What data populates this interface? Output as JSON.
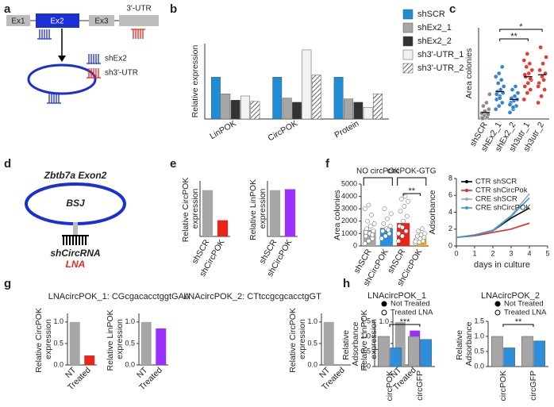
{
  "panel_labels": [
    "a",
    "b",
    "c",
    "d",
    "e",
    "f",
    "g",
    "h"
  ],
  "diagram_a": {
    "exons": [
      "Ex1",
      "Ex2",
      "Ex3",
      "3'-UTR"
    ],
    "legend": [
      "shEx2",
      "sh3'-UTR"
    ]
  },
  "diagram_d": {
    "title": "Zbtb7a Exon2",
    "junction": "BSJ",
    "probe": "shCircRNA",
    "probe_alt": "LNA"
  },
  "g_titles": [
    "LNAcircPOK_1: CGcgacacctggtGAA",
    "LNAcircPOK_2: CTtccgcgcacctgGT"
  ],
  "chart_data": [
    {
      "type": "bar",
      "ylabel": "Relative expression",
      "categories": [
        "LinPOK",
        "CircPOK",
        "Protein"
      ],
      "ylim": [
        0,
        1.8
      ],
      "legend": "right",
      "series": [
        {
          "name": "shSCR",
          "color": "#1f8dd6",
          "values": [
            1,
            1,
            1
          ]
        },
        {
          "name": "shEx2_1",
          "color": "#a6a6a6",
          "values": [
            0.6,
            0.5,
            0.48
          ]
        },
        {
          "name": "shEx2_2",
          "color": "#333333",
          "values": [
            0.45,
            0.4,
            0.4
          ]
        },
        {
          "name": "sh3'-UTR_1",
          "color": "#f2f2f2",
          "values": [
            0.55,
            1.65,
            0.28
          ]
        },
        {
          "name": "sh3'-UTR_2",
          "color": "#bbbbbb",
          "pattern": "hatch",
          "values": [
            0.42,
            1.05,
            0.6
          ]
        }
      ]
    },
    {
      "type": "strip",
      "ylabel": "Area colonies",
      "categories": [
        "shSCR",
        "shEx2_1",
        "shEx2_2",
        "sh3utr_1",
        "sh3utr_2"
      ],
      "ylim": [
        0,
        1400
      ],
      "colors": [
        "#808080",
        "#1f77d4",
        "#1f77d4",
        "#e8251b",
        "#e8251b"
      ],
      "mean_style": "line",
      "points": [
        [
          20,
          40,
          60,
          80,
          100,
          150,
          200,
          250,
          380,
          50,
          30,
          90,
          120,
          70,
          10
        ],
        [
          150,
          200,
          250,
          300,
          350,
          400,
          420,
          450,
          500,
          550,
          600,
          650,
          700,
          800,
          380,
          320
        ],
        [
          100,
          150,
          200,
          250,
          280,
          300,
          320,
          350,
          400,
          450,
          500,
          220,
          180
        ],
        [
          300,
          400,
          450,
          500,
          550,
          600,
          650,
          700,
          750,
          800,
          850,
          900,
          1000,
          620,
          680
        ],
        [
          250,
          350,
          450,
          550,
          650,
          700,
          750,
          850,
          950,
          1100,
          600,
          500
        ]
      ],
      "means": [
        100,
        420,
        300,
        650,
        680
      ],
      "annotations": [
        {
          "text": "*",
          "from": 1,
          "to": 4
        },
        {
          "text": "**",
          "from": 1,
          "to": 3
        }
      ]
    },
    {
      "type": "bar",
      "ylabel": "Relative CircPOK expression",
      "categories": [
        "shSCR",
        "shCircPOK"
      ],
      "ylim": [
        0,
        1.2
      ],
      "values": [
        1,
        0.35
      ],
      "colors": [
        "#a6a6a6",
        "#e8251b"
      ]
    },
    {
      "type": "bar",
      "ylabel": "Relative LinPOK expression",
      "categories": [
        "shSCR",
        "shCircPOK"
      ],
      "ylim": [
        0,
        1.2
      ],
      "values": [
        1,
        1.02
      ],
      "colors": [
        "#a6a6a6",
        "#9b30ff"
      ]
    },
    {
      "type": "strip",
      "ylabel": "Area colonies",
      "categories": [
        "shSCR",
        "shCircPOK",
        "shSCR",
        "shCircPOK"
      ],
      "ylim": [
        0,
        5000
      ],
      "yticks": [
        0,
        1000,
        2000,
        3000,
        4000,
        5000
      ],
      "colors": [
        "#a6a6a6",
        "#2b8fdc",
        "#e8251b",
        "#f5a623"
      ],
      "mean_style": "bar",
      "point_fill": "#ffffff",
      "points": [
        [
          200,
          400,
          600,
          800,
          1000,
          1200,
          1400,
          1600,
          1800,
          2000,
          2500,
          3000,
          3300,
          900,
          1100
        ],
        [
          600,
          800,
          1000,
          1200,
          1400,
          1600,
          1800,
          2200,
          2600,
          3000,
          1300
        ],
        [
          400,
          800,
          1200,
          1600,
          2000,
          2400,
          2800,
          3200,
          3600,
          3800,
          4000,
          1000,
          1500
        ],
        [
          200,
          300,
          400,
          500,
          600,
          700,
          800,
          900,
          1000,
          1200,
          1400,
          350
        ]
      ],
      "means": [
        1300,
        1450,
        1850,
        600
      ],
      "group_labels": [
        {
          "text": "NO circPOK",
          "from": 0,
          "to": 1
        },
        {
          "text": "circPOK-GTG",
          "from": 2,
          "to": 3
        }
      ],
      "annotations": [
        {
          "text": "**",
          "from": 2,
          "to": 3
        }
      ]
    },
    {
      "type": "line",
      "ylabel": "Adsorbance",
      "xlabel": "days in culture",
      "x": [
        0,
        1,
        2,
        3,
        4
      ],
      "xlim": [
        0,
        5
      ],
      "xticks": [
        0,
        1,
        2,
        3,
        4,
        5
      ],
      "ylim": [
        0,
        8
      ],
      "yticks": [
        0,
        2,
        4,
        6,
        8
      ],
      "legend": "upper left",
      "series": [
        {
          "name": "CTR shSCR",
          "color": "#000000",
          "values": [
            1,
            1.3,
            1.8,
            3.3,
            4.5
          ]
        },
        {
          "name": "CTR shCircPok",
          "color": "#e8251b",
          "values": [
            1,
            1.2,
            1.6,
            2,
            2.7
          ]
        },
        {
          "name": "CRE shSCR",
          "color": "#a6a6a6",
          "values": [
            1,
            1.3,
            1.9,
            3.6,
            6.2
          ]
        },
        {
          "name": "CRE shCircPOK",
          "color": "#2b9de0",
          "values": [
            1,
            1.3,
            1.8,
            3.5,
            5.7
          ]
        }
      ]
    },
    {
      "type": "bar",
      "ylabel": "Relative CircPOK expression",
      "categories": [
        "NT",
        "Treated"
      ],
      "ylim": [
        0,
        1.2
      ],
      "yticks": [
        {
          "value": 0,
          "label": "0.0"
        },
        {
          "value": 0.5,
          "label": "0.5"
        },
        {
          "value": 1,
          "label": "1.0"
        }
      ],
      "values": [
        1,
        0.22
      ],
      "colors": [
        "#a6a6a6",
        "#e8251b"
      ]
    },
    {
      "type": "bar",
      "ylabel": "Relative LinPOK expression",
      "categories": [
        "NT",
        "Treated"
      ],
      "ylim": [
        0,
        1.2
      ],
      "yticks": [
        {
          "value": 0,
          "label": "0.0"
        },
        {
          "value": 0.5,
          "label": "0.5"
        },
        {
          "value": 1,
          "label": "1.0"
        }
      ],
      "values": [
        1,
        0.85
      ],
      "colors": [
        "#a6a6a6",
        "#9b30ff"
      ]
    },
    {
      "type": "bar",
      "ylabel": "Relative CircPOK expression",
      "categories": [
        "NT",
        "Treated"
      ],
      "ylim": [
        0,
        1.2
      ],
      "yticks": [
        {
          "value": 0,
          "label": "0.0"
        },
        {
          "value": 0.5,
          "label": "0.5"
        },
        {
          "value": 1,
          "label": "1.0"
        }
      ],
      "values": [
        1,
        0.01
      ],
      "colors": [
        "#a6a6a6",
        "#e8251b"
      ]
    },
    {
      "type": "bar",
      "ylabel": "Relative LinPOK expression",
      "categories": [
        "NT",
        "Treated"
      ],
      "ylim": [
        0,
        1.2
      ],
      "yticks": [
        {
          "value": 0,
          "label": "0.0"
        },
        {
          "value": 0.5,
          "label": "0.5"
        },
        {
          "value": 1,
          "label": "1.0"
        }
      ],
      "values": [
        1,
        0.8
      ],
      "colors": [
        "#a6a6a6",
        "#9b30ff"
      ]
    },
    {
      "type": "bar",
      "title": "LNAcircPOK_1",
      "ylabel": "Relative Adsorbance",
      "categories": [
        "circPOK",
        "circGFP"
      ],
      "ylim": [
        0,
        1.5
      ],
      "yticks": [
        {
          "value": 0,
          "label": "0.0"
        },
        {
          "value": 0.5,
          "label": "0.5"
        },
        {
          "value": 1,
          "label": "1.0"
        },
        {
          "value": 1.5,
          "label": "1.5"
        }
      ],
      "legend": "top",
      "series": [
        {
          "name": "Not Treated",
          "color": "#a6a6a6",
          "marker_fill": "#000000",
          "values": [
            1,
            1
          ]
        },
        {
          "name": "Treated LNA",
          "color": "#2b8fdc",
          "marker_fill": "#ffffff",
          "values": [
            0.62,
            0.9
          ]
        }
      ],
      "annotations": [
        {
          "text": "***",
          "from": 0,
          "to": 1
        }
      ]
    },
    {
      "type": "bar",
      "title": "LNAcircPOK_2",
      "ylabel": "Relative Adsorbance",
      "categories": [
        "circPOK",
        "circGFP"
      ],
      "ylim": [
        0,
        1.5
      ],
      "yticks": [
        {
          "value": 0,
          "label": "0.0"
        },
        {
          "value": 0.5,
          "label": "0.5"
        },
        {
          "value": 1,
          "label": "1.0"
        },
        {
          "value": 1.5,
          "label": "1.5"
        }
      ],
      "legend": "top",
      "series": [
        {
          "name": "Not Treated",
          "color": "#a6a6a6",
          "marker_fill": "#000000",
          "values": [
            1,
            1
          ]
        },
        {
          "name": "Treated LNA",
          "color": "#2b8fdc",
          "marker_fill": "#ffffff",
          "values": [
            0.62,
            0.85
          ]
        }
      ],
      "annotations": [
        {
          "text": "**",
          "from": 0,
          "to": 1
        }
      ]
    }
  ]
}
